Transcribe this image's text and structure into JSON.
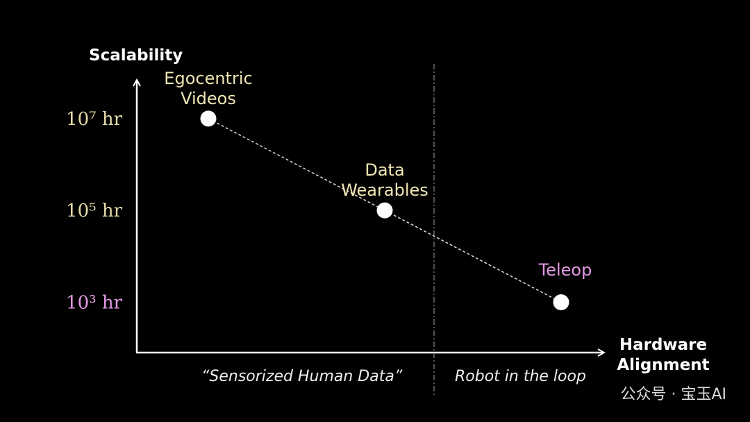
{
  "chart_data": {
    "type": "scatter",
    "y_label": "Scalability",
    "x_label": "Hardware Alignment",
    "categories": [
      "Egocentric Videos",
      "Data Wearables",
      "Teleop"
    ],
    "values": [
      10000000,
      100000,
      1000
    ],
    "color": "#ffffff",
    "label_colors": [
      "#f0e6b4",
      "#f0e6b4",
      "#e59ae5"
    ],
    "log_scale": true,
    "ylim": [
      80,
      70000000
    ],
    "yticks": [
      {
        "value": 10000000,
        "label": "10⁷ hr"
      },
      {
        "value": 100000,
        "label": "10⁵ hr"
      },
      {
        "value": 1000,
        "label": "10³ hr"
      }
    ],
    "ytick_colors": [
      "#e6dcaa",
      "#e6dcaa",
      "#e59ae5"
    ],
    "regions": [
      "“Sensorized Human Data”",
      "Robot in the loop"
    ],
    "watermark": "公众号 · 宝玉AI"
  }
}
